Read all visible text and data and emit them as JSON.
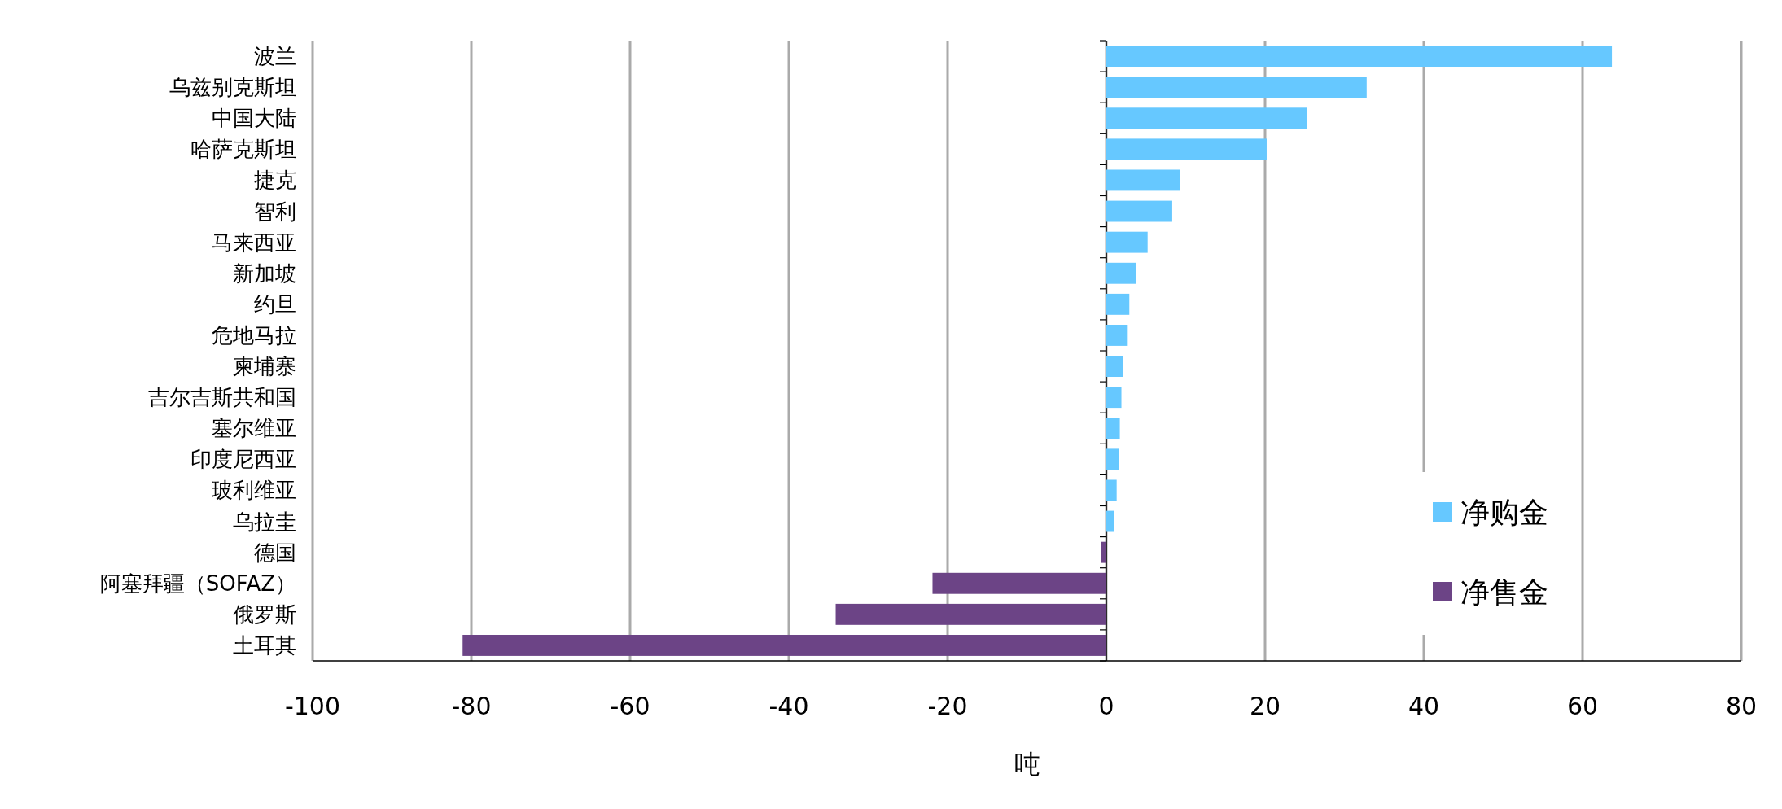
{
  "chart_data": {
    "type": "bar",
    "orientation": "horizontal",
    "stacked": true,
    "categories": [
      "波兰",
      "乌兹别克斯坦",
      "中国大陆",
      "哈萨克斯坦",
      "捷克",
      "智利",
      "马来西亚",
      "新加坡",
      "约旦",
      "危地马拉",
      "柬埔寨",
      "吉尔吉斯共和国",
      "塞尔维亚",
      "印度尼西亚",
      "玻利维亚",
      "乌拉圭",
      "德国",
      "阿塞拜疆（SOFAZ）",
      "俄罗斯",
      "土耳其"
    ],
    "series": [
      {
        "name": "净购金",
        "color": "#66c8ff",
        "values": [
          63.7,
          32.8,
          25.3,
          20.2,
          9.3,
          8.3,
          5.2,
          3.7,
          2.9,
          2.7,
          2.1,
          1.9,
          1.7,
          1.6,
          1.3,
          1.0,
          null,
          null,
          null,
          null
        ]
      },
      {
        "name": "净售金",
        "color": "#6c4486",
        "values": [
          null,
          null,
          null,
          null,
          null,
          null,
          null,
          null,
          null,
          null,
          null,
          null,
          null,
          null,
          null,
          null,
          -0.7,
          -21.9,
          -34.1,
          -81.1
        ]
      }
    ],
    "xlim": [
      -100,
      80
    ],
    "xticks": [
      -100,
      -80,
      -60,
      -40,
      -20,
      0,
      20,
      40,
      60,
      80
    ],
    "xlabel": "吨",
    "grid": "x",
    "legend": "right"
  }
}
